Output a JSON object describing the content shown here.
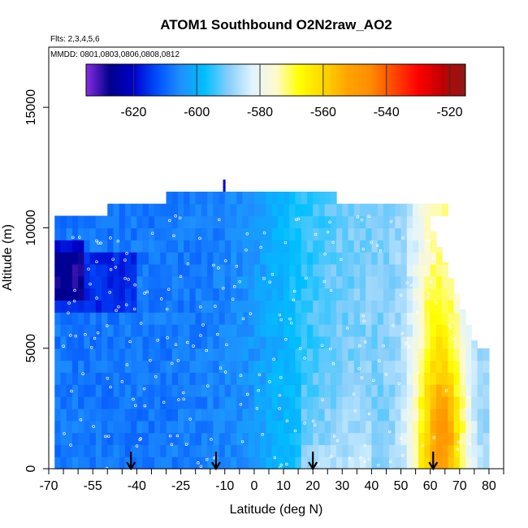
{
  "chart_data": {
    "type": "heatmap",
    "title": "ATOM1 Southbound O2N2raw_AO2",
    "subtitle_flights": "Flts: 2,3,4,5,6",
    "subtitle_dates": "MMDD: 0801,0803,0806,0808,0812",
    "xlabel": "Latitude (deg N)",
    "ylabel": "Altitude (m)",
    "xlim": [
      -70,
      85
    ],
    "ylim": [
      0,
      17500
    ],
    "x_ticks": [
      "-70",
      "-55",
      "-40",
      "-25",
      "-10",
      "0",
      "10",
      "20",
      "30",
      "40",
      "50",
      "60",
      "70",
      "80"
    ],
    "x_tick_values": [
      -70,
      -55,
      -40,
      -25,
      -10,
      0,
      10,
      20,
      30,
      40,
      50,
      60,
      70,
      80
    ],
    "y_ticks": [
      "0",
      "5000",
      "10000",
      "15000"
    ],
    "y_tick_values": [
      0,
      5000,
      10000,
      15000
    ],
    "colorbar": {
      "range": [
        -635,
        -515
      ],
      "labels": [
        "-620",
        "-600",
        "-580",
        "-560",
        "-540",
        "-520"
      ],
      "label_values": [
        -620,
        -600,
        -580,
        -560,
        -540,
        -520
      ],
      "colors": [
        "#8a2be2",
        "#00008b",
        "#0000cd",
        "#0050ff",
        "#1e90ff",
        "#00bfff",
        "#87cefa",
        "#e0f4ff",
        "#fffacd",
        "#ffff00",
        "#ffd700",
        "#ffa500",
        "#ff8c00",
        "#ff4500",
        "#ff0000",
        "#c00000",
        "#8b1a1a"
      ]
    },
    "arrows_latitudes": [
      -42,
      -13,
      20,
      61
    ],
    "field_description": "Values increase from about -615 at high southern latitudes to about -525 near 60-75N; mid-latitudes -600 to -580.",
    "regions": [
      {
        "lat_min": -68,
        "lat_max": 80,
        "alt_min": 0,
        "alt_max": 5000,
        "base": -598
      },
      {
        "lat_min": -68,
        "lat_max": 70,
        "alt_min": 5000,
        "alt_max": 10500,
        "base": -600
      },
      {
        "lat_min": -50,
        "lat_max": 65,
        "alt_min": 10500,
        "alt_max": 11000,
        "base": -595
      }
    ]
  }
}
